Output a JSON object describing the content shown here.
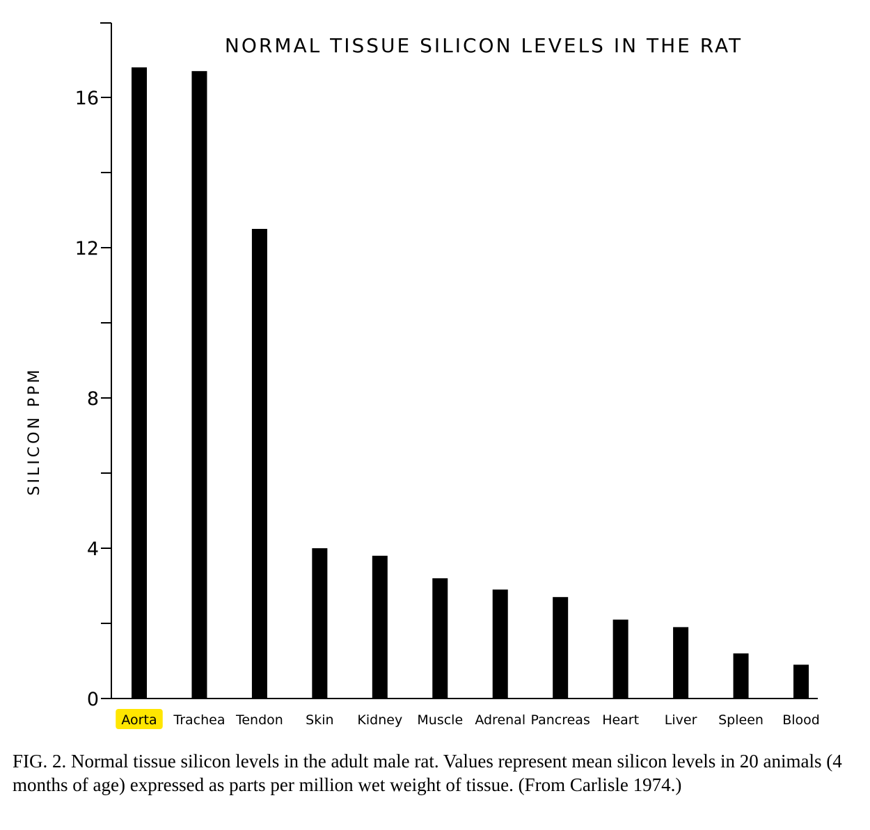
{
  "chart_data": {
    "type": "bar",
    "title": "NORMAL TISSUE SILICON LEVELS IN THE RAT",
    "ylabel": "SILICON PPM",
    "xlabel": "",
    "ylim": [
      0,
      16
    ],
    "yticks": [
      0,
      4,
      8,
      12,
      16
    ],
    "categories": [
      "Aorta",
      "Trachea",
      "Tendon",
      "Skin",
      "Kidney",
      "Muscle",
      "Adrenal",
      "Pancreas",
      "Heart",
      "Liver",
      "Spleen",
      "Blood"
    ],
    "values": [
      16.8,
      16.7,
      12.5,
      4.0,
      3.8,
      3.2,
      2.9,
      2.7,
      2.1,
      1.9,
      1.2,
      0.9
    ],
    "highlighted_category": "Aorta",
    "highlight_color": "#ffe600",
    "bar_color": "#000000",
    "grid": false,
    "legend": "none"
  },
  "caption": "FIG. 2. Normal tissue silicon levels in the adult male rat. Values represent mean silicon levels in 20 animals (4 months of age) expressed as parts per million wet weight of tissue. (From Carlisle 1974.)"
}
